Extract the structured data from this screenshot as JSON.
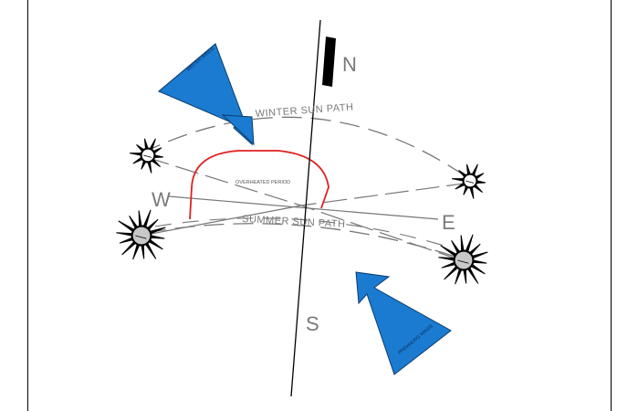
{
  "compass": {
    "north": "N",
    "south": "S",
    "east": "E",
    "west": "W"
  },
  "paths": {
    "winter": "WINTER SUN PATH",
    "summer": "SUMMER SUN PATH",
    "overheated": "OVERHEATED PERIOD"
  },
  "winds": {
    "winter": "WINTER WINDS",
    "prevailing": "PREVAILING WINDS"
  },
  "colors": {
    "wind_arrow": "#1a7bd0",
    "overheated_curve": "#e02020",
    "north_bar": "#000000",
    "label_gray": "#7a7a7a"
  },
  "icons": [
    "sun-icon-winter-west",
    "sun-icon-winter-east",
    "sun-icon-summer-west",
    "sun-icon-summer-east"
  ]
}
